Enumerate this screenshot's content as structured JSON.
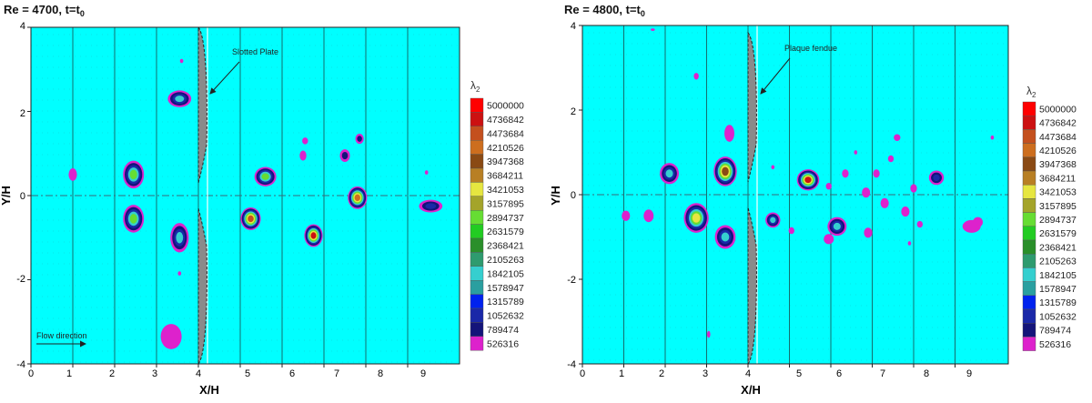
{
  "chart_data": [
    {
      "type": "heatmap",
      "title": "Re = 4700, t=t",
      "title_sub": "0",
      "xlabel": "X/H",
      "ylabel": "Y/H",
      "xlim": [
        0,
        10
      ],
      "ylim": [
        -4,
        4
      ],
      "xticks": [
        0,
        1,
        2,
        3,
        4,
        5,
        6,
        7,
        8,
        9
      ],
      "yticks": [
        -4,
        -2,
        0,
        2,
        4
      ],
      "background_color": "#00ffff",
      "plate_label": "Slotted Plate",
      "flow_label": "Flow direction",
      "legend_title": "λ",
      "legend_title_sub": "2",
      "vortices": [
        {
          "x": 3.55,
          "y": 2.3,
          "rx": 0.28,
          "ry": 0.2,
          "level": 3
        },
        {
          "x": 2.45,
          "y": 0.5,
          "rx": 0.25,
          "ry": 0.33,
          "level": 4
        },
        {
          "x": 2.45,
          "y": -0.55,
          "rx": 0.25,
          "ry": 0.33,
          "level": 4
        },
        {
          "x": 3.55,
          "y": -1.0,
          "rx": 0.22,
          "ry": 0.35,
          "level": 3
        },
        {
          "x": 1.0,
          "y": 0.5,
          "rx": 0.1,
          "ry": 0.15,
          "level": 0
        },
        {
          "x": 5.6,
          "y": 0.45,
          "rx": 0.26,
          "ry": 0.23,
          "level": 4
        },
        {
          "x": 5.25,
          "y": -0.55,
          "rx": 0.24,
          "ry": 0.27,
          "level": 8
        },
        {
          "x": 6.75,
          "y": -0.95,
          "rx": 0.22,
          "ry": 0.27,
          "level": 9
        },
        {
          "x": 7.8,
          "y": -0.05,
          "rx": 0.23,
          "ry": 0.27,
          "level": 7
        },
        {
          "x": 7.5,
          "y": 0.95,
          "rx": 0.12,
          "ry": 0.15,
          "level": 1
        },
        {
          "x": 7.85,
          "y": 1.35,
          "rx": 0.1,
          "ry": 0.12,
          "level": 1
        },
        {
          "x": 6.55,
          "y": 1.3,
          "rx": 0.07,
          "ry": 0.08,
          "level": 0
        },
        {
          "x": 6.5,
          "y": 0.95,
          "rx": 0.08,
          "ry": 0.12,
          "level": 0
        },
        {
          "x": 9.55,
          "y": -0.25,
          "rx": 0.28,
          "ry": 0.15,
          "level": 2
        },
        {
          "x": 3.35,
          "y": -3.35,
          "rx": 0.25,
          "ry": 0.3,
          "level": 0
        },
        {
          "x": 3.6,
          "y": 3.2,
          "rx": 0.04,
          "ry": 0.05,
          "level": 0
        },
        {
          "x": 3.55,
          "y": -1.85,
          "rx": 0.04,
          "ry": 0.05,
          "level": 0
        },
        {
          "x": 9.45,
          "y": 0.55,
          "rx": 0.04,
          "ry": 0.05,
          "level": 0
        }
      ]
    },
    {
      "type": "heatmap",
      "title": "Re = 4800, t=t",
      "title_sub": "0",
      "xlabel": "X/H",
      "ylabel": "Y/H",
      "xlim": [
        0,
        10
      ],
      "ylim": [
        -4,
        4
      ],
      "xticks": [
        0,
        1,
        2,
        3,
        4,
        5,
        6,
        7,
        8,
        9
      ],
      "yticks": [
        -4,
        -2,
        0,
        2,
        4
      ],
      "background_color": "#00ffff",
      "plate_label": "Plaque fendue",
      "legend_title": "λ",
      "legend_title_sub": "2",
      "vortices": [
        {
          "x": 2.1,
          "y": 0.5,
          "rx": 0.23,
          "ry": 0.25,
          "level": 3
        },
        {
          "x": 3.45,
          "y": 0.55,
          "rx": 0.28,
          "ry": 0.35,
          "level": 6
        },
        {
          "x": 3.55,
          "y": 1.45,
          "rx": 0.12,
          "ry": 0.2,
          "level": 0
        },
        {
          "x": 2.75,
          "y": -0.55,
          "rx": 0.3,
          "ry": 0.35,
          "level": 5
        },
        {
          "x": 3.45,
          "y": -1.0,
          "rx": 0.25,
          "ry": 0.28,
          "level": 3
        },
        {
          "x": 1.6,
          "y": -0.5,
          "rx": 0.12,
          "ry": 0.15,
          "level": 0
        },
        {
          "x": 1.05,
          "y": -0.5,
          "rx": 0.1,
          "ry": 0.12,
          "level": 0
        },
        {
          "x": 5.45,
          "y": 0.35,
          "rx": 0.27,
          "ry": 0.25,
          "level": 9
        },
        {
          "x": 4.6,
          "y": -0.6,
          "rx": 0.18,
          "ry": 0.18,
          "level": 3
        },
        {
          "x": 6.15,
          "y": -0.75,
          "rx": 0.23,
          "ry": 0.22,
          "level": 3
        },
        {
          "x": 5.95,
          "y": -1.05,
          "rx": 0.12,
          "ry": 0.12,
          "level": 0
        },
        {
          "x": 8.55,
          "y": 0.4,
          "rx": 0.18,
          "ry": 0.17,
          "level": 2
        },
        {
          "x": 7.6,
          "y": 1.35,
          "rx": 0.08,
          "ry": 0.08,
          "level": 0
        },
        {
          "x": 9.4,
          "y": -0.75,
          "rx": 0.22,
          "ry": 0.15,
          "level": 0
        },
        {
          "x": 6.9,
          "y": -0.9,
          "rx": 0.1,
          "ry": 0.12,
          "level": 0
        },
        {
          "x": 6.85,
          "y": 0.05,
          "rx": 0.1,
          "ry": 0.12,
          "level": 0
        },
        {
          "x": 7.3,
          "y": -0.2,
          "rx": 0.1,
          "ry": 0.12,
          "level": 0
        },
        {
          "x": 7.8,
          "y": -0.4,
          "rx": 0.1,
          "ry": 0.12,
          "level": 0
        },
        {
          "x": 8.0,
          "y": 0.15,
          "rx": 0.08,
          "ry": 0.1,
          "level": 0
        },
        {
          "x": 7.1,
          "y": 0.5,
          "rx": 0.08,
          "ry": 0.1,
          "level": 0
        },
        {
          "x": 6.35,
          "y": 0.5,
          "rx": 0.08,
          "ry": 0.1,
          "level": 0
        },
        {
          "x": 5.95,
          "y": 0.2,
          "rx": 0.07,
          "ry": 0.08,
          "level": 0
        },
        {
          "x": 7.45,
          "y": 0.85,
          "rx": 0.07,
          "ry": 0.08,
          "level": 0
        },
        {
          "x": 8.15,
          "y": -0.7,
          "rx": 0.07,
          "ry": 0.08,
          "level": 0
        },
        {
          "x": 5.05,
          "y": -0.85,
          "rx": 0.07,
          "ry": 0.08,
          "level": 0
        },
        {
          "x": 9.55,
          "y": -0.65,
          "rx": 0.12,
          "ry": 0.12,
          "level": 0
        },
        {
          "x": 2.75,
          "y": 2.8,
          "rx": 0.06,
          "ry": 0.08,
          "level": 0
        },
        {
          "x": 3.05,
          "y": -3.3,
          "rx": 0.04,
          "ry": 0.08,
          "level": 0
        },
        {
          "x": 4.6,
          "y": 0.65,
          "rx": 0.04,
          "ry": 0.05,
          "level": 0
        },
        {
          "x": 6.6,
          "y": 1.0,
          "rx": 0.04,
          "ry": 0.05,
          "level": 0
        },
        {
          "x": 7.9,
          "y": -1.15,
          "rx": 0.04,
          "ry": 0.05,
          "level": 0
        },
        {
          "x": 9.9,
          "y": 1.35,
          "rx": 0.04,
          "ry": 0.05,
          "level": 0
        },
        {
          "x": 1.7,
          "y": 3.9,
          "rx": 0.05,
          "ry": 0.03,
          "level": 0
        }
      ]
    }
  ],
  "legend": {
    "values": [
      "5000000",
      "4736842",
      "4473684",
      "4210526",
      "3947368",
      "3684211",
      "3421053",
      "3157895",
      "2894737",
      "2631579",
      "2368421",
      "2105263",
      "1842105",
      "1578947",
      "1315789",
      "1052632",
      "789474",
      "526316"
    ],
    "colors": [
      "#ff0000",
      "#cc1111",
      "#c4501e",
      "#cd6e1e",
      "#8a4a14",
      "#b87f24",
      "#e6e640",
      "#a4a42a",
      "#66dd33",
      "#22cc22",
      "#2a8f2a",
      "#2e9b6f",
      "#35cfcf",
      "#2a9fa0",
      "#0022ee",
      "#1a28a8",
      "#14147a",
      "#dd22cc"
    ]
  }
}
